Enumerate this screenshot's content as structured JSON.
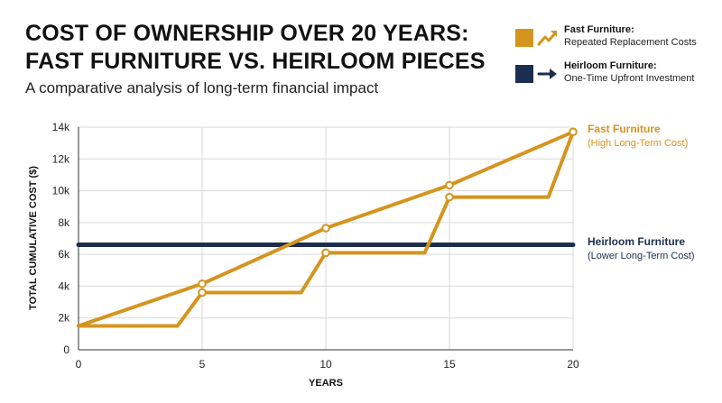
{
  "header": {
    "title_line1": "COST OF OWNERSHIP OVER 20 YEARS:",
    "title_line2": "FAST FURNITURE VS. HEIRLOOM PIECES",
    "subtitle": "A comparative analysis of long-term financial impact"
  },
  "legend": [
    {
      "label": "Fast Furniture:",
      "sublabel": "Repeated Replacement Costs",
      "color": "#D4951E",
      "icon": "trend-up-arrow-icon"
    },
    {
      "label": "Heirloom Furniture:",
      "sublabel": "One-Time Upfront Investment",
      "color": "#1B2E4F",
      "icon": "right-arrow-icon"
    }
  ],
  "annotations": {
    "fast": {
      "title": "Fast Furniture",
      "sub": "(High Long-Term Cost)"
    },
    "heirloom": {
      "title": "Heirloom Furniture",
      "sub": "(Lower Long-Term Cost)"
    }
  },
  "chart_data": {
    "type": "line",
    "xlabel": "YEARS",
    "ylabel": "TOTAL CUMULATIVE COST ($)",
    "xlim": [
      0,
      20
    ],
    "ylim": [
      0,
      14000
    ],
    "x_ticks": [
      0,
      5,
      10,
      15,
      20
    ],
    "y_ticks": [
      0,
      2000,
      4000,
      6000,
      8000,
      10000,
      12000,
      14000
    ],
    "y_tick_labels": [
      "0",
      "2k",
      "4k",
      "6k",
      "8k",
      "10k",
      "12k",
      "14k"
    ],
    "grid": true,
    "colors": {
      "fast": "#D4951E",
      "heirloom": "#1B2E4F"
    },
    "series": [
      {
        "key": "fast_step",
        "points": [
          [
            0,
            1500
          ],
          [
            4,
            1500
          ],
          [
            5,
            3600
          ],
          [
            9,
            3600
          ],
          [
            10,
            6100
          ],
          [
            14,
            6100
          ],
          [
            15,
            9600
          ],
          [
            19,
            9600
          ],
          [
            20,
            13700
          ]
        ]
      },
      {
        "key": "fast_trend",
        "points": [
          [
            0,
            1500
          ],
          [
            5,
            4150
          ],
          [
            10,
            7650
          ],
          [
            15,
            10350
          ],
          [
            20,
            13700
          ]
        ]
      },
      {
        "key": "heirloom",
        "points": [
          [
            0,
            6600
          ],
          [
            20,
            6600
          ]
        ]
      }
    ],
    "markers": [
      [
        5,
        4150
      ],
      [
        5,
        3600
      ],
      [
        10,
        7650
      ],
      [
        10,
        6100
      ],
      [
        15,
        10350
      ],
      [
        15,
        9600
      ],
      [
        20,
        13700
      ]
    ]
  }
}
